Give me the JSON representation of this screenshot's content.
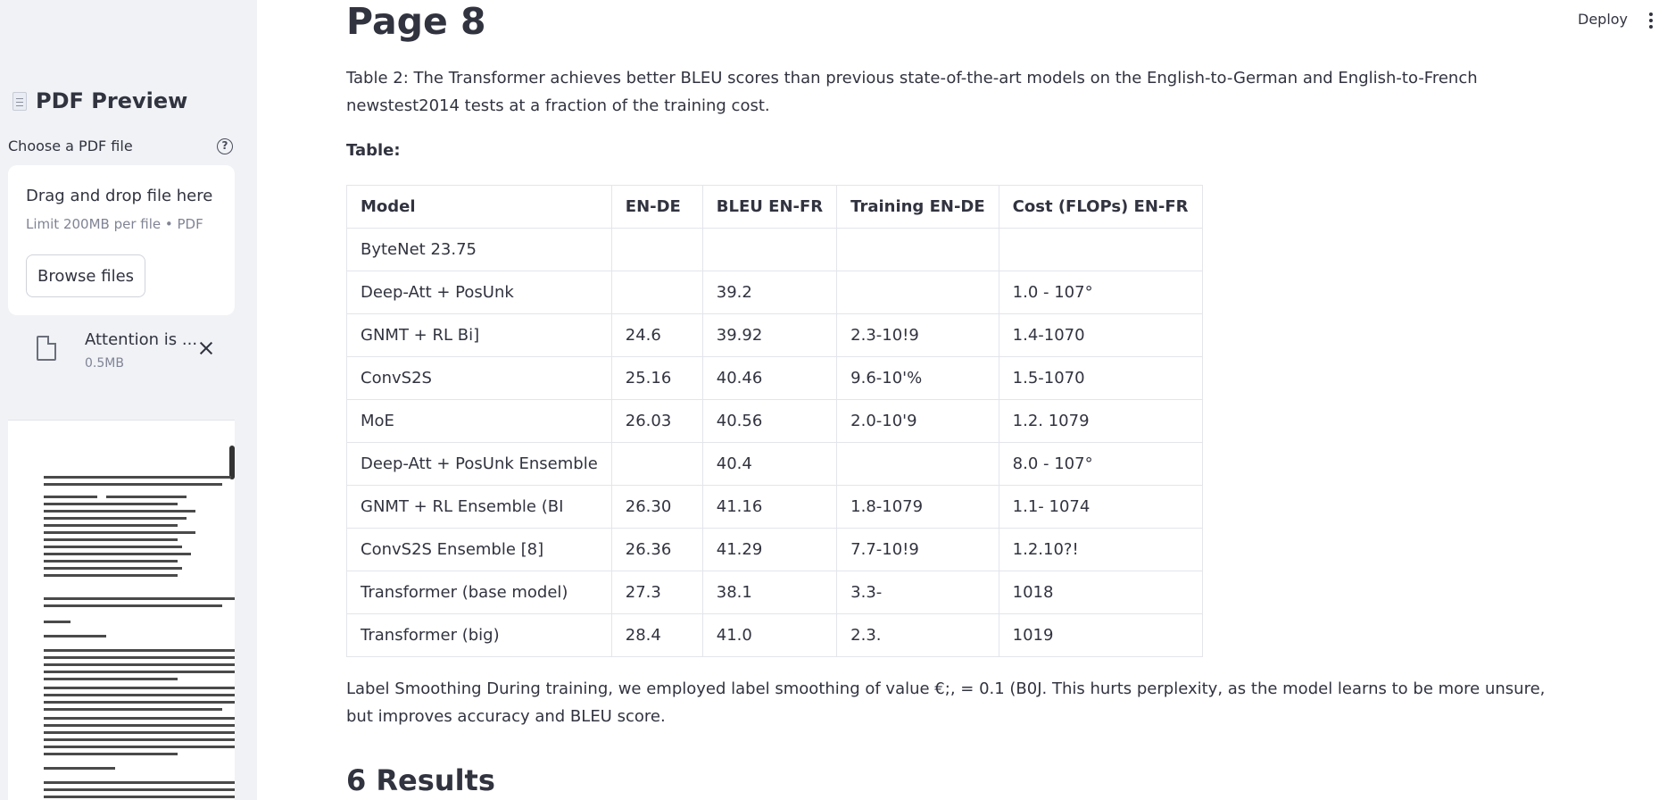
{
  "sidebar": {
    "title": "PDF Preview",
    "title_icon": "document-icon",
    "uploader": {
      "label": "Choose a PDF file",
      "help_icon": "question-circle-icon",
      "drop_title": "Drag and drop file here",
      "limit": "Limit 200MB per file • PDF",
      "browse_label": "Browse files"
    },
    "file": {
      "name": "Attention is ...",
      "size": "0.5MB"
    }
  },
  "header": {
    "deploy_label": "Deploy",
    "menu_icon": "kebab-menu-icon"
  },
  "main": {
    "page_title": "Page 8",
    "caption": "Table 2: The Transformer achieves better BLEU scores than previous state-of-the-art models on the English-to-German and English-to-French newstest2014 tests at a fraction of the training cost.",
    "table_label": "Table:",
    "table": {
      "headers": [
        "Model",
        "EN-DE",
        "BLEU EN-FR",
        "Training EN-DE",
        "Cost (FLOPs) EN-FR"
      ],
      "rows": [
        [
          "ByteNet 23.75",
          "",
          "",
          "",
          ""
        ],
        [
          "Deep-Att + PosUnk",
          "",
          "39.2",
          "",
          "1.0 - 107°"
        ],
        [
          "GNMT + RL Bi]",
          "24.6",
          "39.92",
          "2.3-10!9",
          "1.4-1070"
        ],
        [
          "ConvS2S",
          "25.16",
          "40.46",
          "9.6-10'%",
          "1.5-1070"
        ],
        [
          "MoE",
          "26.03",
          "40.56",
          "2.0-10'9",
          "1.2. 1079"
        ],
        [
          "Deep-Att + PosUnk Ensemble",
          "",
          "40.4",
          "",
          "8.0 - 107°"
        ],
        [
          "GNMT + RL Ensemble (BI",
          "26.30",
          "41.16",
          "1.8-1079",
          "1.1- 1074"
        ],
        [
          "ConvS2S Ensemble [8]",
          "26.36",
          "41.29",
          "7.7-10!9",
          "1.2.10?!"
        ],
        [
          "Transformer (base model)",
          "27.3",
          "38.1",
          "3.3-",
          "1018"
        ],
        [
          "Transformer (big)",
          "28.4",
          "41.0",
          "2.3.",
          "1019"
        ]
      ]
    },
    "paragraph": "Label Smoothing During training, we employed label smoothing of value €;, = 0.1 (B0J. This hurts perplexity, as the model learns to be more unsure, but improves accuracy and BLEU score.",
    "section_title": "6 Results"
  }
}
